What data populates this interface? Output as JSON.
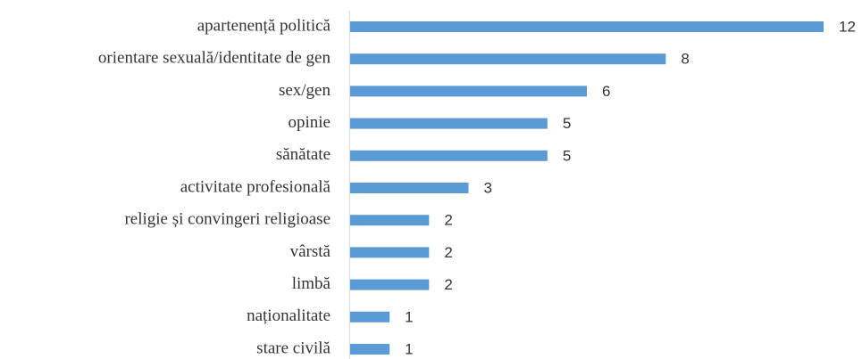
{
  "chart_data": {
    "type": "bar",
    "orientation": "horizontal",
    "categories": [
      "apartenență politică",
      "orientare sexuală/identitate de gen",
      "sex/gen",
      "opinie",
      "sănătate",
      "activitate profesională",
      "religie și convingeri religioase",
      "vârstă",
      "limbă",
      "naționalitate",
      "stare civilă"
    ],
    "values": [
      12,
      8,
      6,
      5,
      5,
      3,
      2,
      2,
      2,
      1,
      1
    ],
    "color": "#5b9bd5"
  }
}
